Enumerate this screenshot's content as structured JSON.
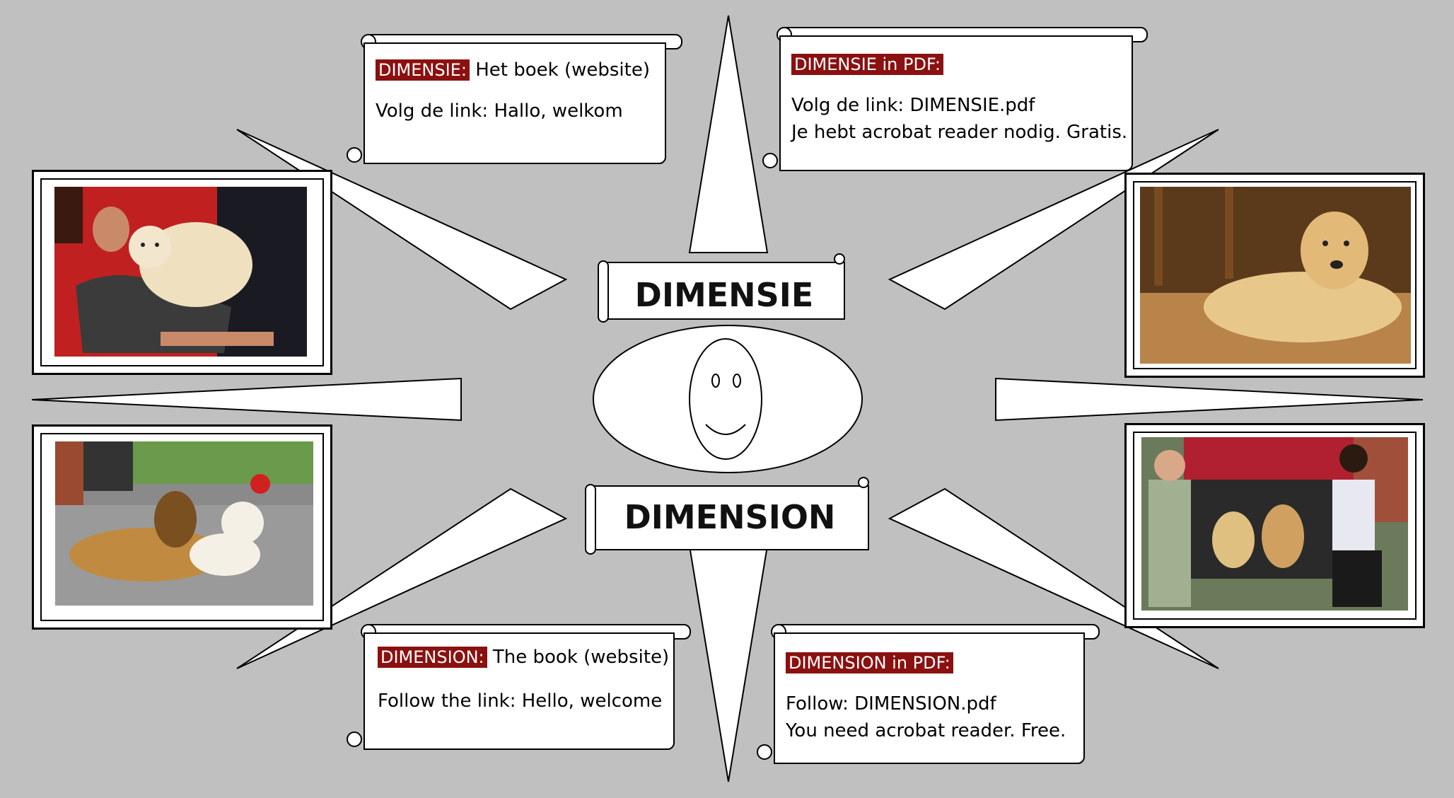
{
  "scroll_nl": {
    "tag": "DIMENSIE:",
    "line1_rest": " Het boek (website)",
    "line2": "Volg de link: Hallo, welkom"
  },
  "scroll_nl_pdf": {
    "tag": "DIMENSIE in PDF:",
    "line1": "Volg de link: DIMENSIE.pdf",
    "line2": "Je hebt acrobat reader nodig. Gratis."
  },
  "scroll_en": {
    "tag": "DIMENSION:",
    "line1_rest": " The book (website)",
    "line2": "Follow the link: Hello, welcome"
  },
  "scroll_en_pdf": {
    "tag": "DIMENSION in PDF:",
    "line1": "Follow: DIMENSION.pdf",
    "line2": "You need acrobat reader. Free."
  },
  "center": {
    "title_top": "DIMENSIE",
    "title_bottom": "DIMENSION"
  },
  "photos": [
    {
      "subject": "man-with-golden-retriever-on-red-sofa"
    },
    {
      "subject": "golden-retriever-lying-on-floor"
    },
    {
      "subject": "collie-and-golden-retriever-on-pavement"
    },
    {
      "subject": "two-women-with-golden-retrievers-in-car-trunk"
    }
  ],
  "colors": {
    "background": "#c0c0c0",
    "tag": "#8b1010"
  }
}
